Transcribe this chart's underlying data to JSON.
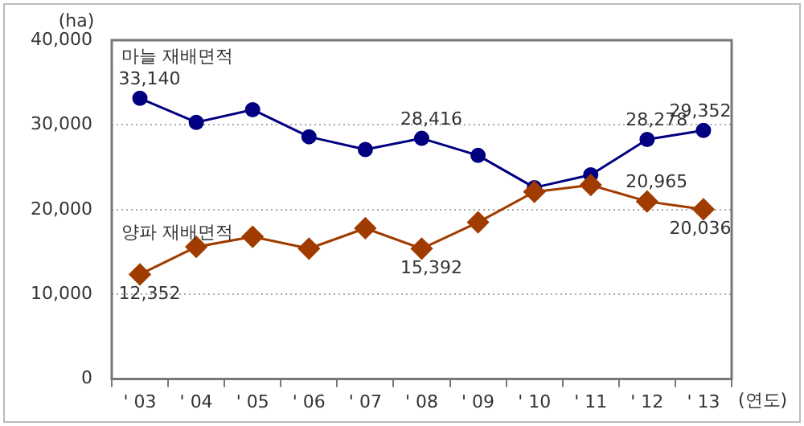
{
  "chart_data": {
    "type": "line",
    "xlabel": "(연도)",
    "ylabel": "(ha)",
    "categories": [
      "' 03",
      "' 04",
      "' 05",
      "' 06",
      "' 07",
      "' 08",
      "' 09",
      "' 10",
      "' 11",
      "' 12",
      "' 13"
    ],
    "series": [
      {
        "name": "마늘 재배면적",
        "color": "#000080",
        "marker": "circle",
        "values": [
          33140,
          30300,
          31800,
          28600,
          27100,
          28416,
          26400,
          22600,
          24100,
          28278,
          29352
        ],
        "value_labels": [
          "33,140",
          null,
          null,
          null,
          null,
          "28,416",
          null,
          null,
          null,
          "28,278",
          "29,352"
        ]
      },
      {
        "name": "양파 재배면적",
        "color": "#a03c00",
        "marker": "diamond",
        "values": [
          12352,
          15600,
          16800,
          15400,
          17800,
          15392,
          18500,
          22100,
          22900,
          20965,
          20036
        ],
        "value_labels": [
          "12,352",
          null,
          null,
          null,
          null,
          "15,392",
          null,
          null,
          null,
          "20,965",
          "20,036"
        ]
      }
    ],
    "ylim": [
      0,
      40000
    ],
    "yticks": [
      {
        "value": 0,
        "label": "0"
      },
      {
        "value": 10000,
        "label": "10,000"
      },
      {
        "value": 20000,
        "label": "20,000"
      },
      {
        "value": 30000,
        "label": "30,000"
      },
      {
        "value": 40000,
        "label": "40,000"
      }
    ],
    "grid": "y",
    "legend": false
  }
}
